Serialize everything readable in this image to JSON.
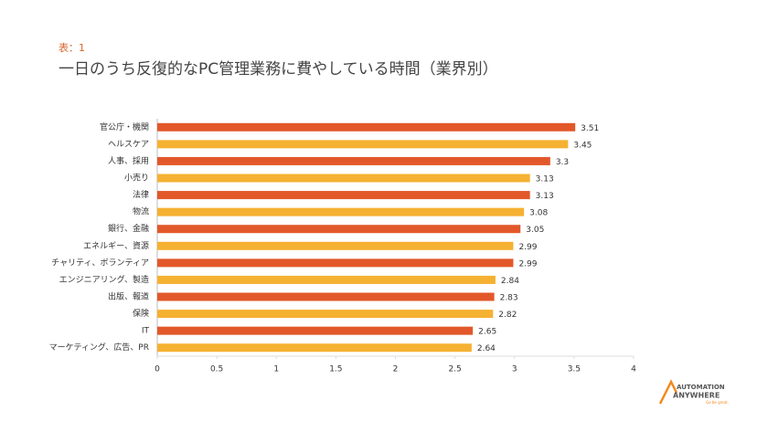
{
  "chart_data": {
    "type": "barh",
    "label": "表：1",
    "title": "一日のうち反復的なPC管理業務に費やしている時間（業界別）",
    "categories": [
      "官公庁・機関",
      "ヘルスケア",
      "人事、採用",
      "小売り",
      "法律",
      "物流",
      "銀行、金融",
      "エネルギー、資源",
      "チャリティ、ボランティア",
      "エンジニアリング、製造",
      "出版、報道",
      "保険",
      "IT",
      "マーケティング、広告、PR"
    ],
    "values": [
      3.51,
      3.45,
      3.3,
      3.13,
      3.13,
      3.08,
      3.05,
      2.99,
      2.99,
      2.84,
      2.83,
      2.82,
      2.65,
      2.64
    ],
    "colors": [
      "#e2582a",
      "#f5b131"
    ],
    "xlim": [
      0,
      4
    ],
    "xticks": [
      0,
      0.5,
      1,
      1.5,
      2,
      2.5,
      3,
      3.5,
      4
    ],
    "grid": false
  },
  "logo": {
    "name": "AUTOMATION",
    "name2": "ANYWHERE",
    "tagline": "Go be great."
  }
}
